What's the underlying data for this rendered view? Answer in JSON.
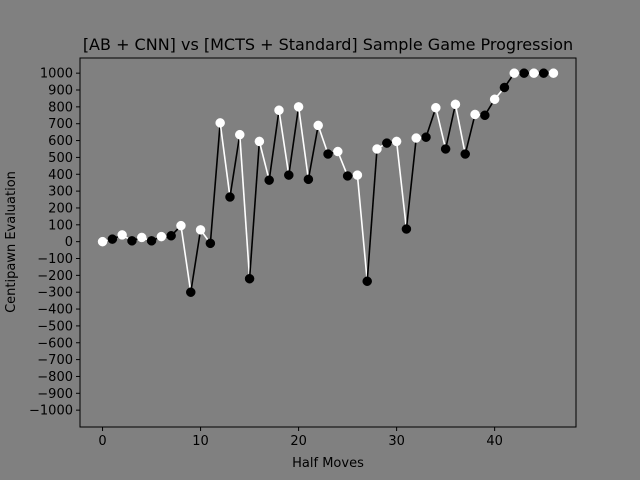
{
  "chart_data": {
    "type": "line",
    "title": "[AB + CNN] vs [MCTS + Standard] Sample Game Progression",
    "xlabel": "Half Moves",
    "ylabel": "Centipawn Evaluation",
    "xlim": [
      -2.3,
      48.3
    ],
    "ylim": [
      -1100,
      1090
    ],
    "xticks": [
      0,
      10,
      20,
      30,
      40
    ],
    "yticks": [
      -1000,
      -900,
      -800,
      -700,
      -600,
      -500,
      -400,
      -300,
      -200,
      -100,
      0,
      100,
      200,
      300,
      400,
      500,
      600,
      700,
      800,
      900,
      1000
    ],
    "grid": false,
    "x": [
      0,
      1,
      2,
      3,
      4,
      5,
      6,
      7,
      8,
      9,
      10,
      11,
      12,
      13,
      14,
      15,
      16,
      17,
      18,
      19,
      20,
      21,
      22,
      23,
      24,
      25,
      26,
      27,
      28,
      29,
      30,
      31,
      32,
      33,
      34,
      35,
      36,
      37,
      38,
      39,
      40,
      41,
      42,
      43,
      44,
      45,
      46
    ],
    "values": [
      0,
      15,
      40,
      5,
      25,
      5,
      30,
      35,
      95,
      -300,
      70,
      -10,
      705,
      265,
      635,
      -220,
      595,
      365,
      780,
      395,
      800,
      370,
      690,
      520,
      535,
      390,
      395,
      -235,
      550,
      585,
      595,
      75,
      615,
      620,
      795,
      550,
      815,
      520,
      755,
      750,
      845,
      915,
      1000,
      1000,
      1000,
      1000,
      1000
    ],
    "colors": {
      "background": "#808080",
      "even_move": "#ffffff",
      "odd_move": "#000000"
    }
  }
}
